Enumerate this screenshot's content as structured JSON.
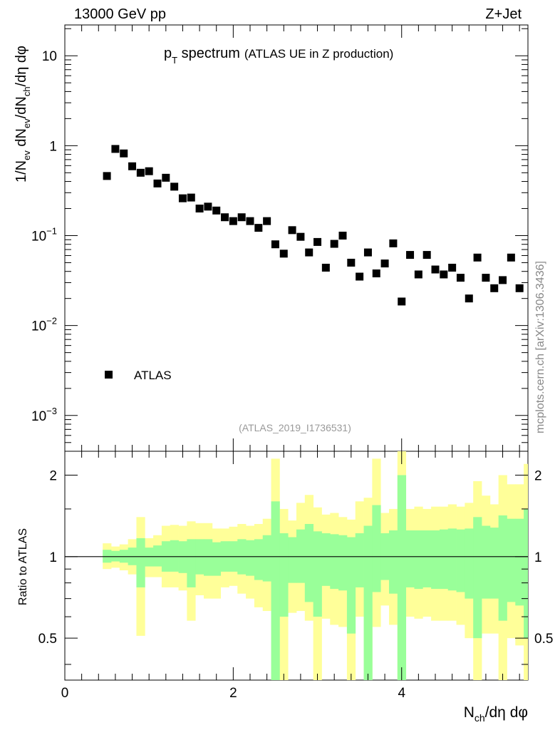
{
  "header": {
    "energy_label": "13000 GeV pp",
    "process_label": "Z+Jet",
    "title_main": "p",
    "title_sub": "T",
    "title_rest": " spectrum",
    "title_note": "(ATLAS UE in Z production)",
    "analysis_id": "(ATLAS_2019_I1736531)",
    "side_credit": "mcplots.cern.ch [arXiv:1306.3436]"
  },
  "axes": {
    "y_main_label": "1/N_ev dN_ev/dN_ch/dη dφ",
    "y_ratio_label": "Ratio to ATLAS",
    "x_label": "N_ch/dη dφ",
    "y_main_ticks": [
      "10^-3",
      "10^-2",
      "10^-1",
      "1",
      "10"
    ],
    "y_ratio_ticks": [
      "0.5",
      "1",
      "2"
    ],
    "x_ticks": [
      "0",
      "2",
      "4"
    ]
  },
  "legend": {
    "series_label": "ATLAS"
  },
  "chart_data": [
    {
      "type": "scatter",
      "y_scale": "log",
      "xlim": [
        0,
        5.5
      ],
      "ylim": [
        0.0004,
        22
      ],
      "series": [
        {
          "name": "ATLAS",
          "color": "#000000",
          "marker": "square",
          "x": [
            0.5,
            0.6,
            0.7,
            0.8,
            0.9,
            1.0,
            1.1,
            1.2,
            1.3,
            1.4,
            1.5,
            1.6,
            1.7,
            1.8,
            1.9,
            2.0,
            2.1,
            2.2,
            2.3,
            2.4,
            2.5,
            2.6,
            2.7,
            2.8,
            2.9,
            3.0,
            3.1,
            3.2,
            3.3,
            3.4,
            3.5,
            3.6,
            3.7,
            3.8,
            3.9,
            4.0,
            4.1,
            4.2,
            4.3,
            4.4,
            4.5,
            4.6,
            4.7,
            4.8,
            4.9,
            5.0,
            5.1,
            5.2,
            5.3,
            5.4
          ],
          "y": [
            0.46,
            0.92,
            0.82,
            0.59,
            0.5,
            0.52,
            0.38,
            0.44,
            0.35,
            0.26,
            0.265,
            0.2,
            0.21,
            0.19,
            0.16,
            0.145,
            0.16,
            0.145,
            0.122,
            0.145,
            0.08,
            0.063,
            0.115,
            0.097,
            0.065,
            0.085,
            0.044,
            0.081,
            0.1,
            0.05,
            0.035,
            0.065,
            0.038,
            0.049,
            0.082,
            0.0185,
            0.061,
            0.037,
            0.061,
            0.042,
            0.037,
            0.044,
            0.034,
            0.02,
            0.057,
            0.034,
            0.026,
            0.032,
            0.057,
            0.026
          ]
        }
      ]
    },
    {
      "type": "area",
      "y_scale": "log",
      "xlim": [
        0,
        5.5
      ],
      "ylim": [
        0.35,
        2.45
      ],
      "reference_line": 1,
      "bin_width": 0.1,
      "bin_starts": [
        0.45,
        0.55,
        0.65,
        0.75,
        0.85,
        0.95,
        1.05,
        1.15,
        1.25,
        1.35,
        1.45,
        1.55,
        1.65,
        1.75,
        1.85,
        1.95,
        2.05,
        2.15,
        2.25,
        2.35,
        2.45,
        2.55,
        2.65,
        2.75,
        2.85,
        2.95,
        3.05,
        3.15,
        3.25,
        3.35,
        3.45,
        3.55,
        3.65,
        3.75,
        3.85,
        3.95,
        4.05,
        4.15,
        4.25,
        4.35,
        4.45,
        4.55,
        4.65,
        4.75,
        4.85,
        4.95,
        5.05,
        5.15,
        5.25,
        5.35,
        5.45
      ],
      "series": [
        {
          "name": "",
          "color": "#ffff99",
          "upper": [
            1.12,
            1.09,
            1.11,
            1.16,
            1.4,
            1.17,
            1.2,
            1.3,
            1.31,
            1.3,
            1.35,
            1.33,
            1.33,
            1.27,
            1.27,
            1.29,
            1.32,
            1.3,
            1.32,
            1.38,
            2.3,
            1.5,
            1.36,
            1.58,
            1.69,
            1.52,
            1.43,
            1.45,
            1.4,
            1.37,
            1.6,
            1.65,
            2.3,
            1.45,
            1.5,
            2.6,
            1.5,
            1.53,
            1.5,
            1.53,
            1.53,
            1.56,
            1.53,
            1.58,
            1.9,
            1.68,
            1.56,
            2.0,
            1.85,
            1.85,
            2.2
          ],
          "lower": [
            0.9,
            0.91,
            0.89,
            0.86,
            0.51,
            0.84,
            0.84,
            0.77,
            0.77,
            0.75,
            0.58,
            0.72,
            0.7,
            0.7,
            0.77,
            0.78,
            0.73,
            0.7,
            0.65,
            0.63,
            0.35,
            0.35,
            0.62,
            0.63,
            0.58,
            0.35,
            0.59,
            0.56,
            0.55,
            0.35,
            0.6,
            0.35,
            0.55,
            0.66,
            0.56,
            0.35,
            0.6,
            0.59,
            0.6,
            0.58,
            0.58,
            0.58,
            0.56,
            0.5,
            0.35,
            0.52,
            0.52,
            0.35,
            0.5,
            0.47,
            0.35
          ]
        },
        {
          "name": "",
          "color": "#99ff99",
          "upper": [
            1.06,
            1.05,
            1.06,
            1.08,
            1.17,
            1.08,
            1.1,
            1.14,
            1.15,
            1.14,
            1.16,
            1.16,
            1.16,
            1.13,
            1.14,
            1.14,
            1.16,
            1.15,
            1.16,
            1.2,
            1.6,
            1.22,
            1.18,
            1.26,
            1.32,
            1.24,
            1.22,
            1.21,
            1.2,
            1.18,
            1.22,
            1.3,
            1.55,
            1.22,
            1.25,
            2.0,
            1.25,
            1.25,
            1.25,
            1.25,
            1.26,
            1.27,
            1.26,
            1.27,
            1.4,
            1.3,
            1.28,
            1.42,
            1.38,
            1.38,
            1.5
          ],
          "lower": [
            0.95,
            0.96,
            0.95,
            0.93,
            0.77,
            0.92,
            0.92,
            0.88,
            0.88,
            0.87,
            0.77,
            0.86,
            0.85,
            0.85,
            0.88,
            0.88,
            0.86,
            0.85,
            0.82,
            0.81,
            0.35,
            0.6,
            0.8,
            0.8,
            0.68,
            0.6,
            0.78,
            0.76,
            0.75,
            0.52,
            0.77,
            0.35,
            0.74,
            0.82,
            0.73,
            0.35,
            0.77,
            0.76,
            0.77,
            0.76,
            0.76,
            0.75,
            0.74,
            0.7,
            0.5,
            0.7,
            0.7,
            0.58,
            0.68,
            0.66,
            0.5
          ]
        }
      ]
    }
  ]
}
